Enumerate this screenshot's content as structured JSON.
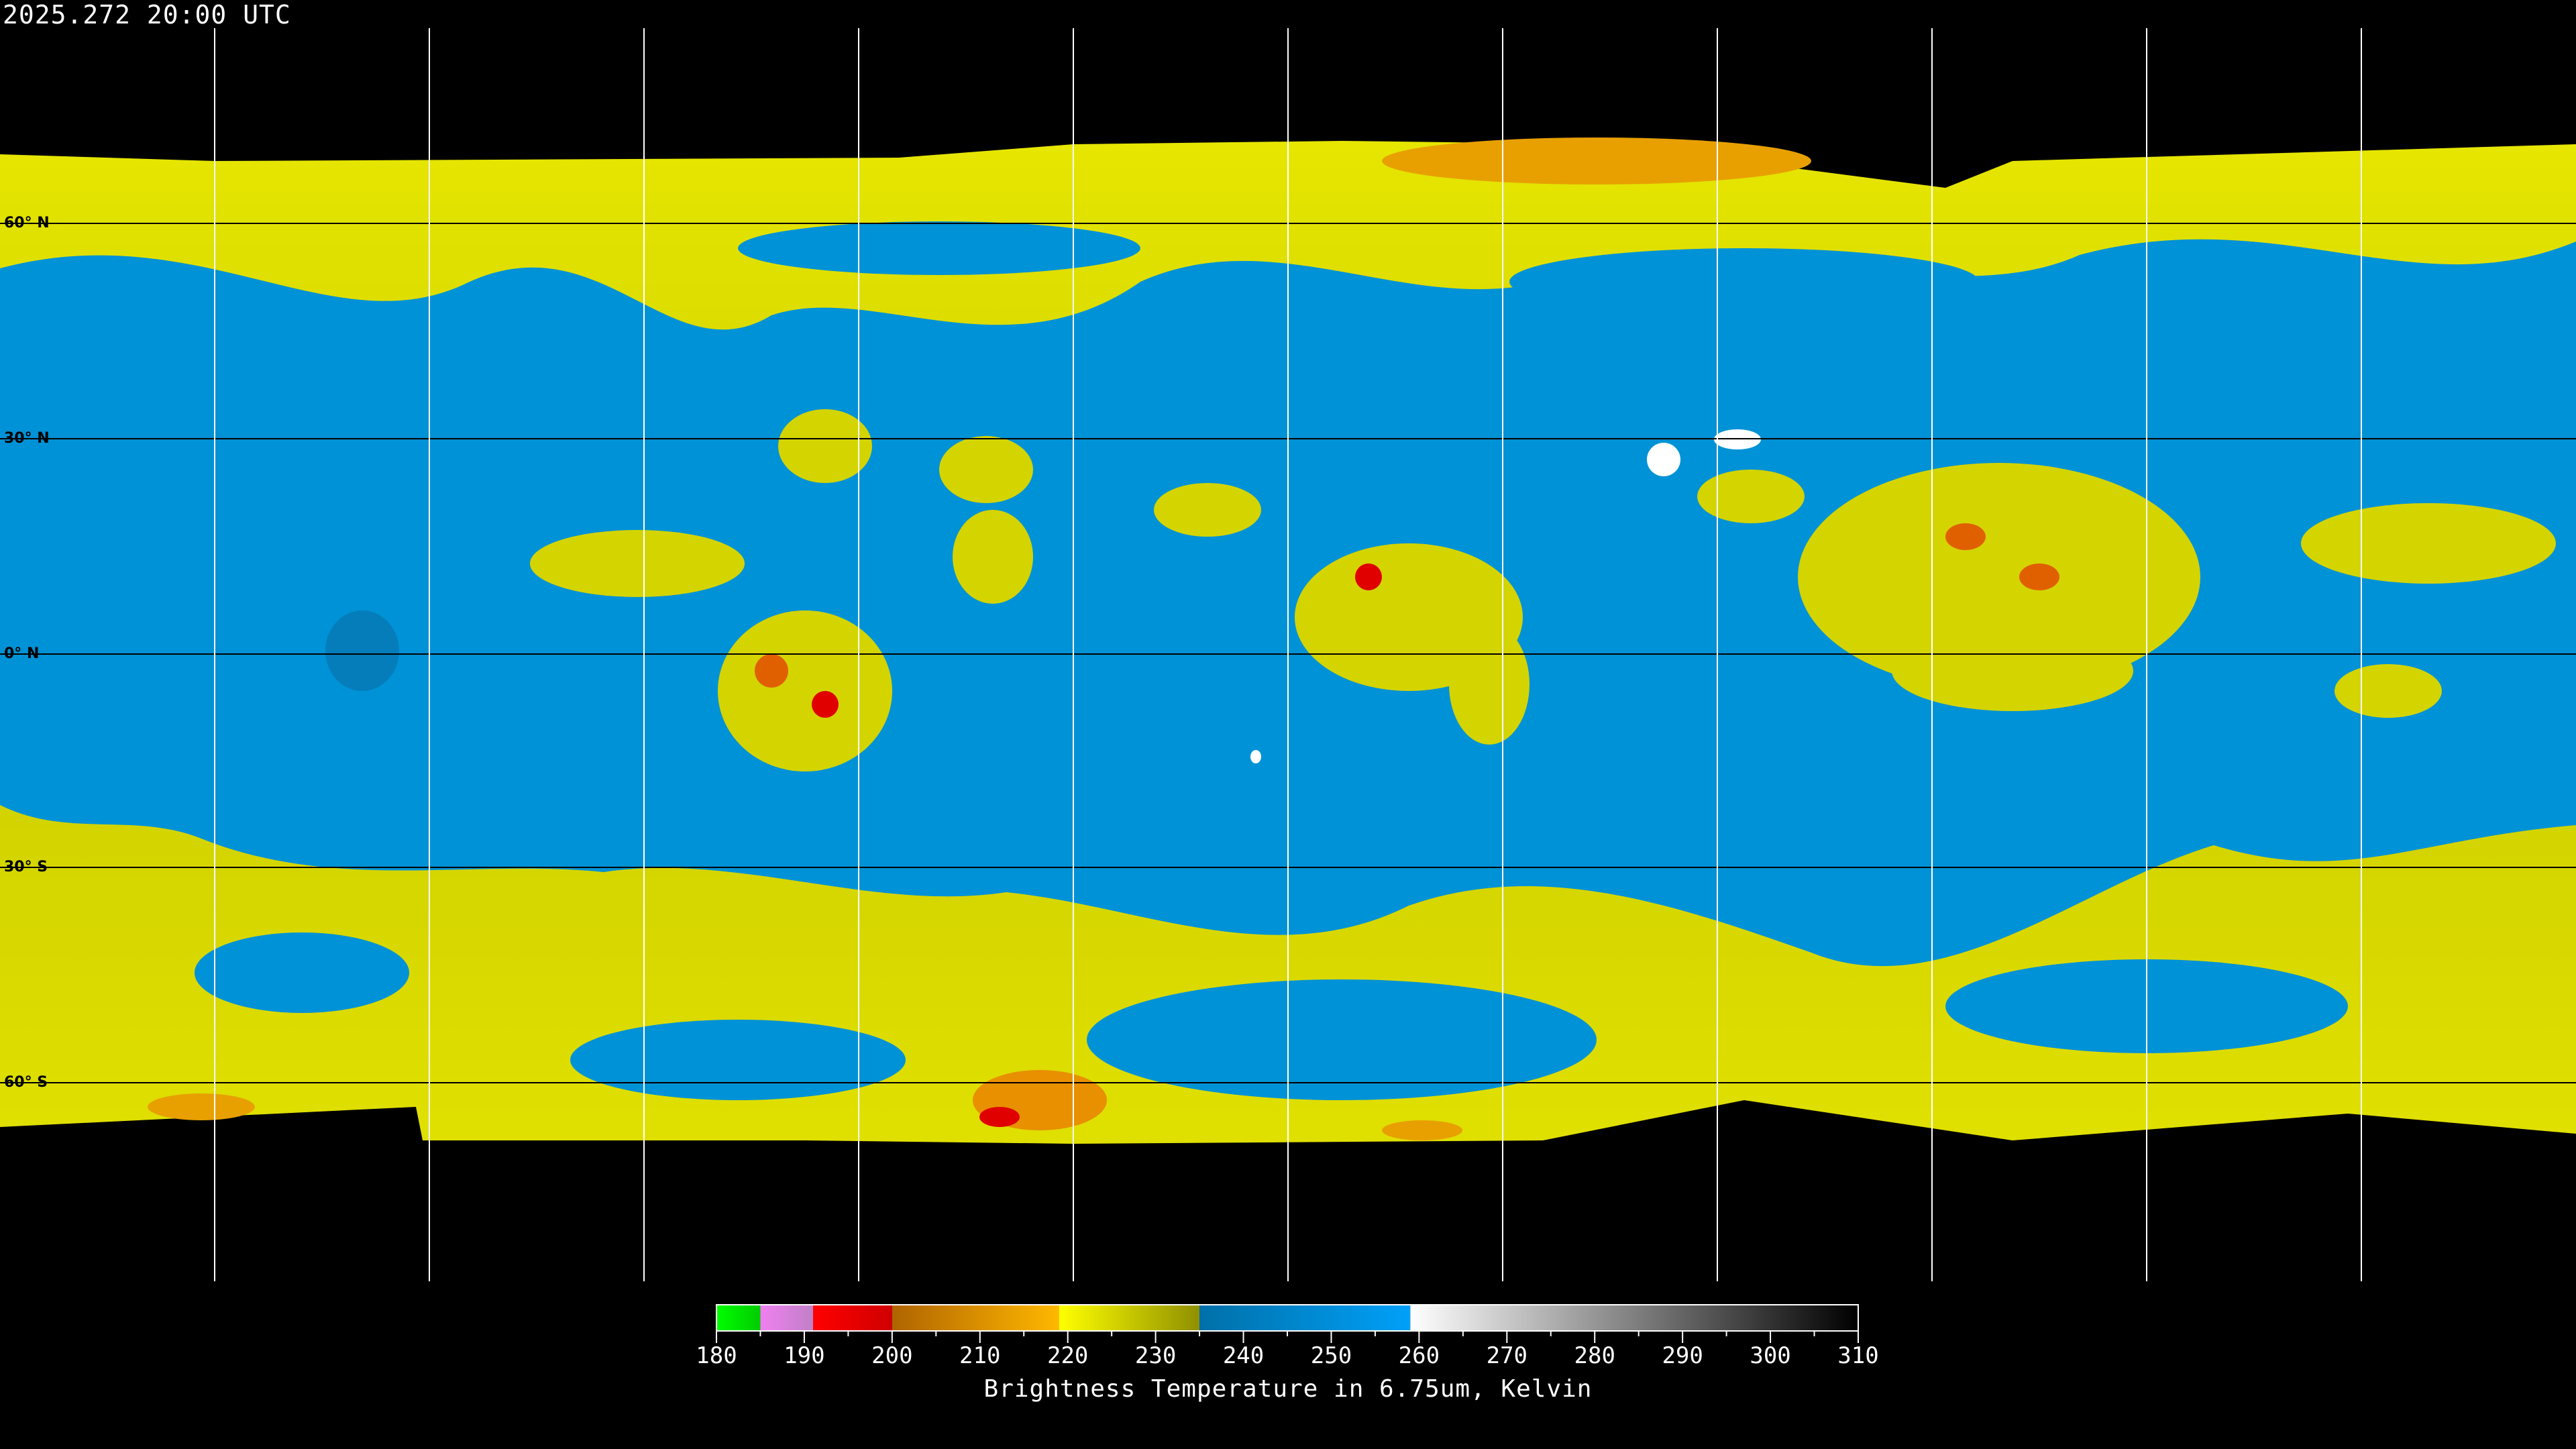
{
  "header": {
    "timestamp": "2025.272 20:00 UTC"
  },
  "map": {
    "projection": "equirectangular",
    "latitude_labels": [
      "60° N",
      "30° N",
      "0° N",
      "30° S",
      "60° S"
    ],
    "gridlines": true
  },
  "colorbar": {
    "title": "Brightness Temperature in 6.75um, Kelvin",
    "range": [
      180,
      310
    ],
    "tick_labels": [
      "180",
      "190",
      "200",
      "210",
      "220",
      "230",
      "240",
      "250",
      "260",
      "270",
      "280",
      "290",
      "300",
      "310"
    ],
    "segments": [
      {
        "from": 180,
        "to": 185,
        "colors": [
          "#00ff00",
          "#00cc00"
        ]
      },
      {
        "from": 185,
        "to": 191,
        "colors": [
          "#f080f0",
          "#c080c8"
        ]
      },
      {
        "from": 191,
        "to": 200,
        "colors": [
          "#ff0000",
          "#d00000"
        ]
      },
      {
        "from": 200,
        "to": 219,
        "colors": [
          "#b06400",
          "#ffb800"
        ]
      },
      {
        "from": 219,
        "to": 235,
        "colors": [
          "#ffff00",
          "#909000"
        ]
      },
      {
        "from": 235,
        "to": 259,
        "colors": [
          "#0070a8",
          "#00a0f8"
        ]
      },
      {
        "from": 259,
        "to": 310,
        "colors": [
          "#ffffff",
          "#000000"
        ]
      }
    ]
  },
  "colors": {
    "dry": "#0090d8",
    "moist": "#d8d800",
    "cold": "#e08000",
    "very_cold": "#e00000"
  }
}
